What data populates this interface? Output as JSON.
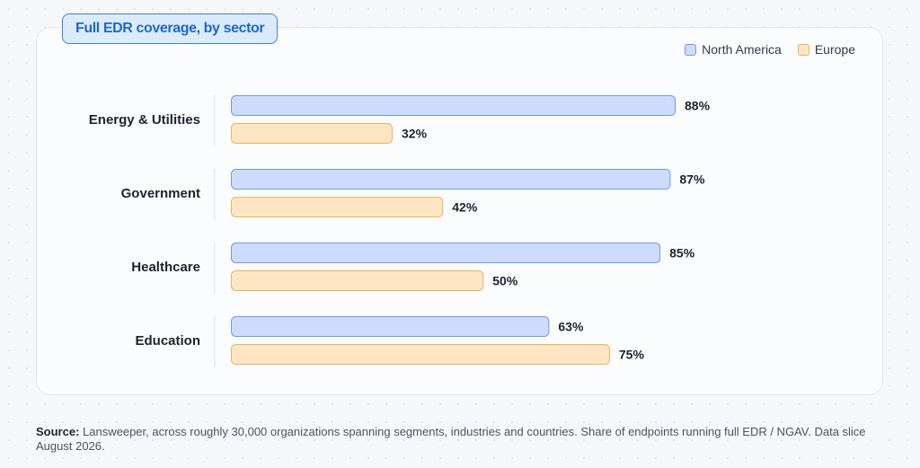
{
  "chart_data": {
    "type": "bar",
    "orientation": "horizontal",
    "title": "Full EDR coverage, by sector",
    "categories": [
      "Energy & Utilities",
      "Government",
      "Healthcare",
      "Education"
    ],
    "series": [
      {
        "name": "North America",
        "values": [
          88,
          87,
          85,
          63
        ],
        "labels": [
          "88%",
          "87%",
          "85%",
          "63%"
        ],
        "fill": "#cddcfb",
        "stroke": "#6f9ae8"
      },
      {
        "name": "Europe",
        "values": [
          32,
          42,
          50,
          75
        ],
        "labels": [
          "32%",
          "42%",
          "50%",
          "75%"
        ],
        "fill": "#fde6c4",
        "stroke": "#ebb35a"
      }
    ],
    "xlim": [
      0,
      100
    ],
    "unit": "%",
    "grid": false,
    "legend": "top-right"
  },
  "source": {
    "label": "Source:",
    "text": "Lansweeper, across roughly 30,000 organizations spanning segments, industries and countries. Share of endpoints running full EDR / NGAV. Data slice August 2026."
  }
}
